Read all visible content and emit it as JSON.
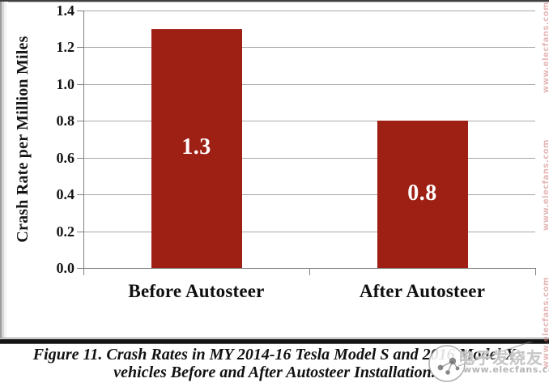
{
  "chart_data": {
    "type": "bar",
    "title": "",
    "categories": [
      "Before Autosteer",
      "After Autosteer"
    ],
    "values": [
      1.3,
      0.8
    ],
    "bar_labels": [
      "1.3",
      "0.8"
    ],
    "xlabel": "",
    "ylabel": "Crash Rate per Million Miles",
    "ylim": [
      0,
      1.4
    ],
    "ytick_step": 0.2,
    "ytick_labels": [
      "0.0",
      "0.2",
      "0.4",
      "0.6",
      "0.8",
      "1.0",
      "1.2",
      "1.4"
    ],
    "grid": true,
    "legend_position": "none",
    "bar_color": "#9e2015",
    "bar_label_color": "#ffffff",
    "gridline_color": "#a8a8a8",
    "axis_color": "#808080"
  },
  "caption": {
    "line1": "Figure 11. Crash Rates in MY 2014-16 Tesla Model S and 2016 Model X",
    "line2": "vehicles Before and After Autosteer Installation."
  },
  "watermarks": {
    "brand_cjk": "电子发烧友",
    "brand_url": "www.elecfans.com",
    "side_url": "www.elecfans.com"
  }
}
